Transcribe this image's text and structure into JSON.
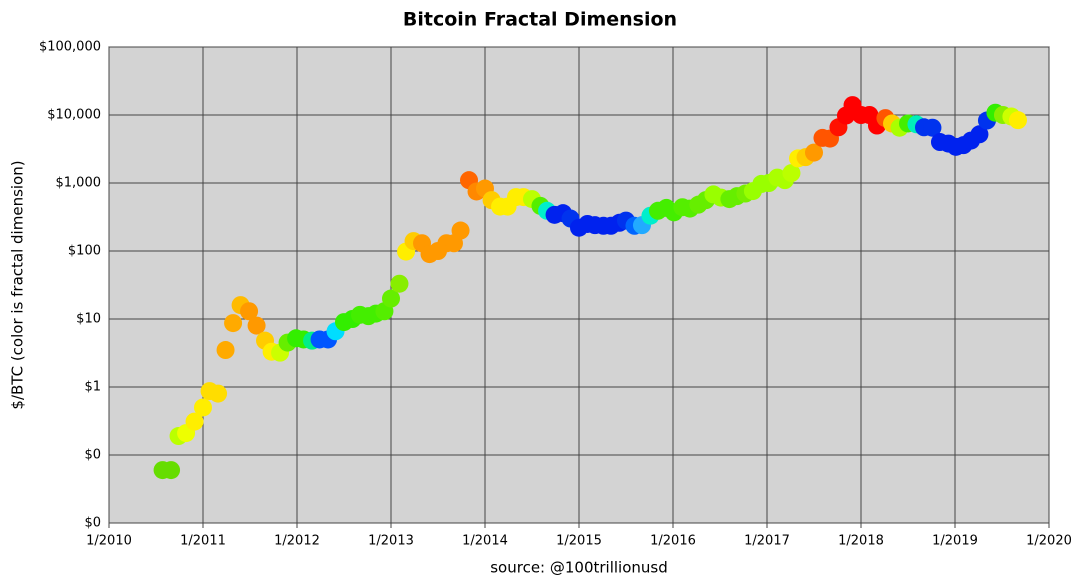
{
  "chart_data": {
    "type": "scatter",
    "title": "Bitcoin Fractal Dimension",
    "y_label": "$/BTC (color is fractal dimension)",
    "source": "source: @100trillionusd",
    "log_y": true,
    "grid": true,
    "xlim": [
      2010,
      2020
    ],
    "xticks": [
      {
        "value": 2010,
        "label": "1/2010"
      },
      {
        "value": 2011,
        "label": "1/2011"
      },
      {
        "value": 2012,
        "label": "1/2012"
      },
      {
        "value": 2013,
        "label": "1/2013"
      },
      {
        "value": 2014,
        "label": "1/2014"
      },
      {
        "value": 2015,
        "label": "1/2015"
      },
      {
        "value": 2016,
        "label": "1/2016"
      },
      {
        "value": 2017,
        "label": "1/2017"
      },
      {
        "value": 2018,
        "label": "1/2018"
      },
      {
        "value": 2019,
        "label": "1/2019"
      },
      {
        "value": 2020,
        "label": "1/2020"
      }
    ],
    "ylim": [
      0.01,
      100000
    ],
    "yticks": [
      {
        "value": 0.01,
        "label": "$0"
      },
      {
        "value": 0.1,
        "label": "$0"
      },
      {
        "value": 1,
        "label": "$1"
      },
      {
        "value": 10,
        "label": "$10"
      },
      {
        "value": 100,
        "label": "$100"
      },
      {
        "value": 1000,
        "label": "$1,000"
      },
      {
        "value": 10000,
        "label": "$10,000"
      },
      {
        "value": 100000,
        "label": "$100,000"
      }
    ],
    "x": [
      2010.57,
      2010.66,
      2010.74,
      2010.82,
      2010.91,
      2011.0,
      2011.07,
      2011.16,
      2011.24,
      2011.32,
      2011.4,
      2011.49,
      2011.57,
      2011.66,
      2011.73,
      2011.82,
      2011.9,
      2011.99,
      2012.07,
      2012.16,
      2012.24,
      2012.33,
      2012.41,
      2012.5,
      2012.59,
      2012.67,
      2012.76,
      2012.84,
      2012.93,
      2013.0,
      2013.09,
      2013.16,
      2013.24,
      2013.33,
      2013.41,
      2013.5,
      2013.59,
      2013.67,
      2013.74,
      2013.83,
      2013.91,
      2014.0,
      2014.07,
      2014.16,
      2014.24,
      2014.33,
      2014.41,
      2014.5,
      2014.59,
      2014.66,
      2014.74,
      2014.83,
      2014.91,
      2015.0,
      2015.09,
      2015.17,
      2015.26,
      2015.34,
      2015.43,
      2015.5,
      2015.59,
      2015.67,
      2015.76,
      2015.84,
      2015.93,
      2016.01,
      2016.1,
      2016.18,
      2016.27,
      2016.35,
      2016.43,
      2016.51,
      2016.6,
      2016.68,
      2016.77,
      2016.85,
      2016.94,
      2017.02,
      2017.11,
      2017.19,
      2017.26,
      2017.33,
      2017.41,
      2017.5,
      2017.59,
      2017.67,
      2017.76,
      2017.84,
      2017.91,
      2018.0,
      2018.09,
      2018.17,
      2018.26,
      2018.33,
      2018.41,
      2018.5,
      2018.59,
      2018.67,
      2018.76,
      2018.84,
      2018.93,
      2019.01,
      2019.09,
      2019.17,
      2019.26,
      2019.34,
      2019.43,
      2019.51,
      2019.6,
      2019.67
    ],
    "values": [
      0.06,
      0.06,
      0.19,
      0.21,
      0.31,
      0.5,
      0.87,
      0.8,
      3.5,
      8.7,
      16,
      13,
      8,
      4.8,
      3.3,
      3.2,
      4.5,
      5.2,
      5,
      4.8,
      5,
      5,
      6.6,
      9,
      10,
      11.5,
      11,
      12,
      13,
      20,
      33,
      98,
      140,
      130,
      90,
      100,
      130,
      130,
      200,
      1100,
      750,
      830,
      560,
      450,
      450,
      620,
      620,
      580,
      460,
      390,
      340,
      360,
      300,
      220,
      250,
      240,
      235,
      235,
      260,
      280,
      235,
      240,
      330,
      390,
      430,
      370,
      440,
      420,
      480,
      560,
      680,
      610,
      580,
      640,
      700,
      760,
      970,
      1000,
      1200,
      1100,
      1400,
      2300,
      2400,
      2800,
      4600,
      4500,
      6600,
      9800,
      14000,
      10000,
      10000,
      7000,
      9000,
      7500,
      6500,
      7500,
      7300,
      6600,
      6500,
      4000,
      3800,
      3400,
      3600,
      4200,
      5200,
      8300,
      10800,
      10000,
      9500,
      8400
    ],
    "colors": [
      "#66dd00",
      "#66dd00",
      "#bbff00",
      "#eeff00",
      "#ffee00",
      "#ffee00",
      "#ffdd00",
      "#ffdd00",
      "#ffaa00",
      "#ffaa00",
      "#ffbb00",
      "#ff9900",
      "#ff9900",
      "#ffcc00",
      "#ffee00",
      "#ccff00",
      "#66ee00",
      "#33ee00",
      "#33ee00",
      "#00ee88",
      "#0055ff",
      "#0055ff",
      "#00ddff",
      "#33ee00",
      "#33ee00",
      "#44ee00",
      "#44ee00",
      "#44ee00",
      "#55ee00",
      "#66ee00",
      "#88ee00",
      "#ffee00",
      "#ffcc00",
      "#ff9900",
      "#ff9900",
      "#ff9900",
      "#ff9900",
      "#ff9900",
      "#ff9900",
      "#ff6600",
      "#ff8800",
      "#ff9900",
      "#ffcc00",
      "#ffee00",
      "#ffee00",
      "#ffee00",
      "#ffee00",
      "#bbff00",
      "#55ee00",
      "#00eecc",
      "#0022ee",
      "#0022ee",
      "#0033ee",
      "#0022ee",
      "#0022ee",
      "#0022ee",
      "#0022ee",
      "#0022ee",
      "#0022ee",
      "#0033ee",
      "#0066ff",
      "#22aaff",
      "#00eecc",
      "#44ee00",
      "#44ee00",
      "#44ee00",
      "#55ee00",
      "#55ee00",
      "#66ee00",
      "#66ee00",
      "#99ff00",
      "#99ff00",
      "#66ee00",
      "#66ee00",
      "#77ee00",
      "#99ff00",
      "#99ff00",
      "#99ff00",
      "#aaff00",
      "#aaff00",
      "#bbff00",
      "#ffee00",
      "#ffcc00",
      "#ff9900",
      "#ff5500",
      "#ff5500",
      "#ff1100",
      "#ff0000",
      "#ff0000",
      "#ff0000",
      "#ff0000",
      "#ff0000",
      "#ff5500",
      "#ffcc00",
      "#aaff00",
      "#44ee00",
      "#00eebb",
      "#0033ee",
      "#0033ee",
      "#0022ee",
      "#0022ee",
      "#0022ee",
      "#0022ee",
      "#0022ee",
      "#0022ee",
      "#0033ee",
      "#33ee00",
      "#88ee00",
      "#ccff00",
      "#ffee00"
    ]
  }
}
